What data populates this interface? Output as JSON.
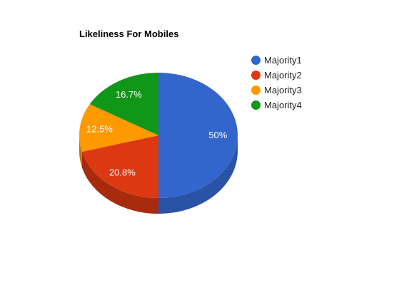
{
  "chart_data": {
    "type": "pie",
    "style": "3d",
    "title": "Likeliness For Mobiles",
    "legend_position": "right",
    "slices": [
      {
        "name": "Majority1",
        "value": 50,
        "label": "50%",
        "color": "#3366cc",
        "side_color": "#2a52a5"
      },
      {
        "name": "Majority2",
        "value": 20.8,
        "label": "20.8%",
        "color": "#dc3912",
        "side_color": "#a82b0e"
      },
      {
        "name": "Majority3",
        "value": 12.5,
        "label": "12.5%",
        "color": "#ff9900",
        "side_color": "#c27400"
      },
      {
        "name": "Majority4",
        "value": 16.7,
        "label": "16.7%",
        "color": "#109618",
        "side_color": "#0c7312"
      }
    ]
  }
}
